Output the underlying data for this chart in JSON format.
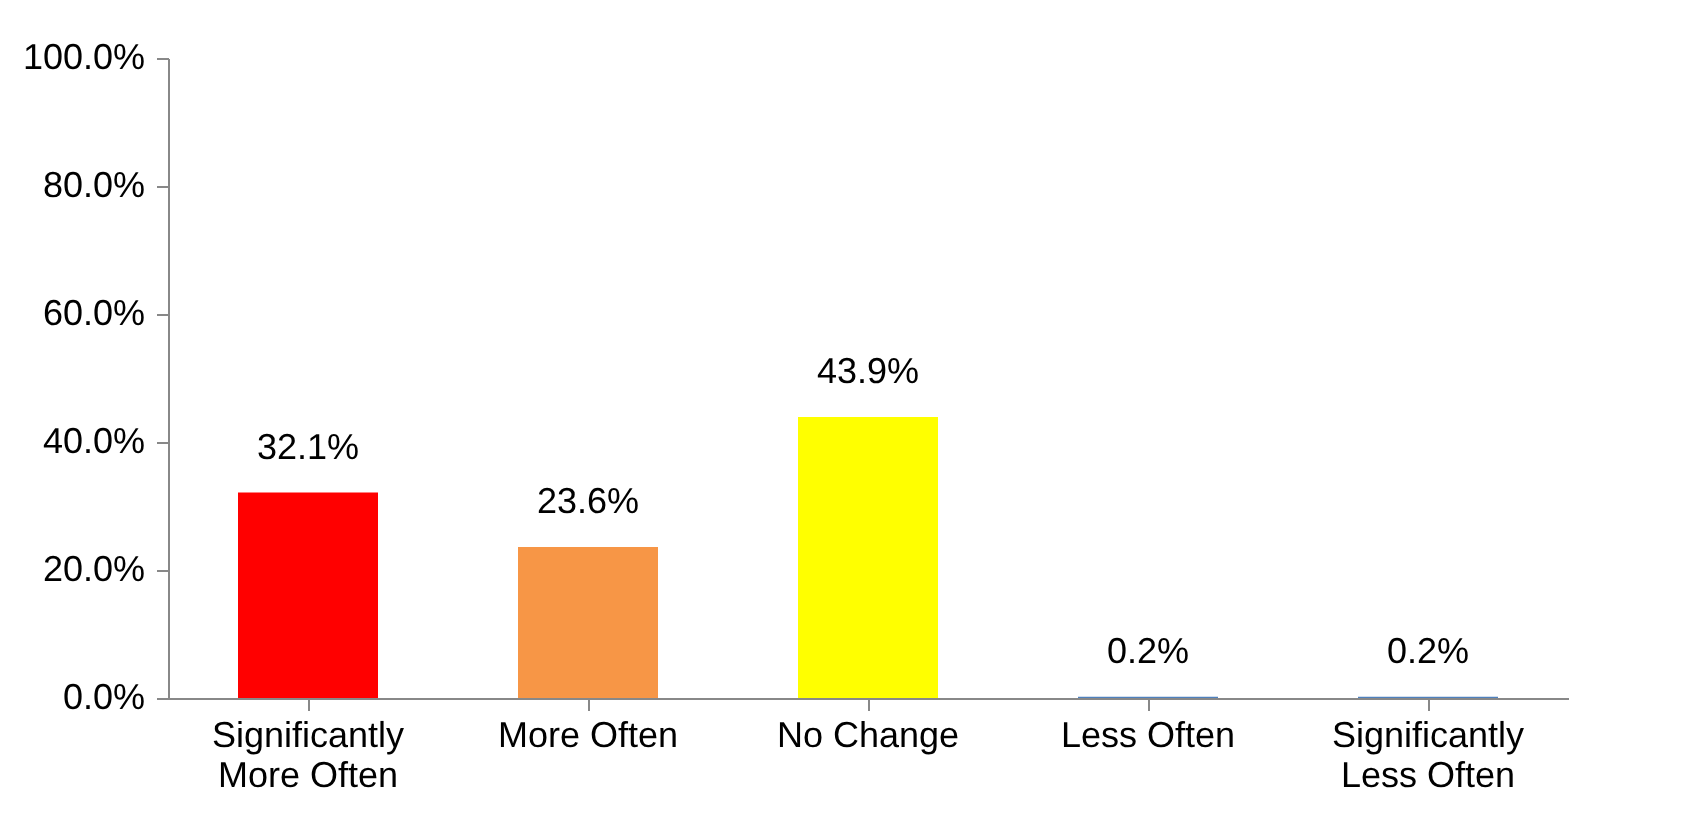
{
  "chart_data": {
    "type": "bar",
    "categories": [
      "Significantly More Often",
      "More Often",
      "No Change",
      "Less Often",
      "Significantly Less Often"
    ],
    "values": [
      32.1,
      23.6,
      43.9,
      0.2,
      0.2
    ],
    "colors": [
      "#ff0000",
      "#f79646",
      "#ffff00",
      "#4f81bd",
      "#4f81bd"
    ],
    "value_labels": [
      "32.1%",
      "23.6%",
      "43.9%",
      "0.2%",
      "0.2%"
    ],
    "ylim": [
      0,
      100
    ],
    "yticks": [
      {
        "value": 0,
        "label": "0.0%"
      },
      {
        "value": 20,
        "label": "20.0%"
      },
      {
        "value": 40,
        "label": "40.0%"
      },
      {
        "value": 60,
        "label": "60.0%"
      },
      {
        "value": 80,
        "label": "80.0%"
      },
      {
        "value": 100,
        "label": "100.0%"
      }
    ],
    "grid": false,
    "legend": false
  }
}
